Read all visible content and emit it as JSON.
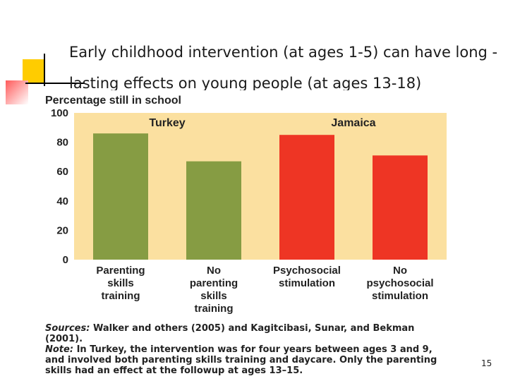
{
  "slide": {
    "title": "Early childhood intervention (at ages 1-5) can have long -lasting effects on young people (at ages 13-18)",
    "page_number": "15"
  },
  "colors": {
    "plot_background": "#fbe0a0",
    "turkey_bars": "#869c43",
    "jamaica_bars": "#ee3524",
    "accent_yellow": "#ffcc00",
    "accent_red": "#ff5a5a"
  },
  "chart_data": {
    "type": "bar",
    "title": "Percentage still in school",
    "ylim": [
      0,
      100
    ],
    "yticks": [
      "0",
      "20",
      "40",
      "60",
      "80",
      "100"
    ],
    "groups": [
      "Turkey",
      "Jamaica"
    ],
    "categories": [
      [
        "Parenting",
        "skills",
        "training"
      ],
      [
        "No",
        "parenting",
        "skills",
        "training"
      ],
      [
        "Psychosocial",
        "stimulation"
      ],
      [
        "No",
        "psychosocial",
        "stimulation"
      ]
    ],
    "values": [
      86,
      67,
      85,
      71
    ],
    "bar_groups": [
      0,
      0,
      1,
      1
    ],
    "grid": false
  },
  "notes": {
    "sources_lead": "Sources:",
    "sources_text": "Walker and others (2005) and Kagitcibasi, Sunar, and Bekman (2001).",
    "note_lead": "Note:",
    "note_text": "In Turkey, the intervention was for four years between ages 3 and 9, and involved both parenting skills training and daycare. Only the parenting skills had an effect at the followup at ages 13–15."
  }
}
